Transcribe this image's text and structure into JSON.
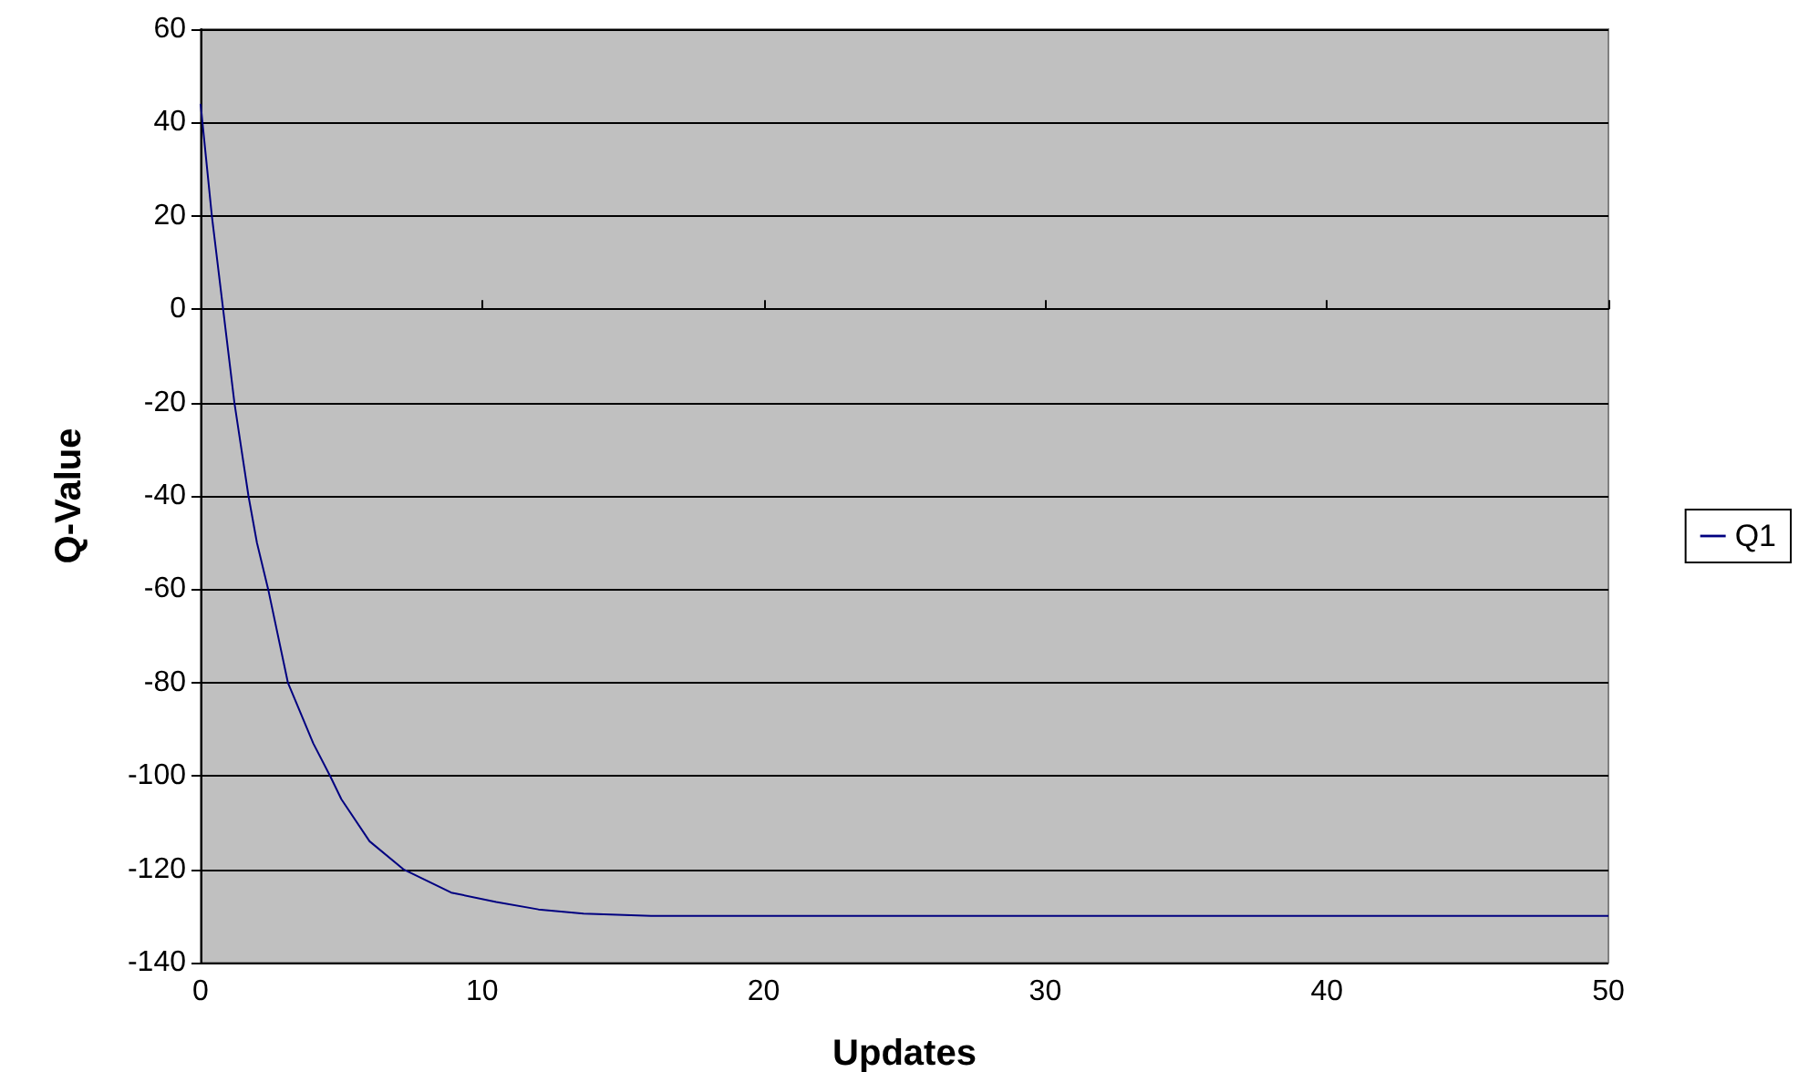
{
  "chart_data": {
    "type": "line",
    "xlabel": "Updates",
    "ylabel": "Q-Value",
    "x": [
      0,
      0.4,
      0.8,
      1.2,
      1.7,
      2.0,
      2.4,
      3.1,
      4.0,
      4.6,
      5.0,
      6.0,
      7.2,
      8.9,
      10.5,
      12,
      13.6,
      16,
      20,
      25,
      30,
      40,
      50
    ],
    "series": [
      {
        "name": "Q1",
        "color": "#000080",
        "values": [
          44,
          20,
          0,
          -20,
          -40,
          -50,
          -60,
          -80,
          -93,
          -100,
          -105,
          -114,
          -120,
          -125,
          -127,
          -128.6,
          -129.5,
          -130,
          -130,
          -130,
          -130,
          -130,
          -130
        ]
      }
    ],
    "xlim": [
      0,
      50
    ],
    "xticks": [
      0,
      10,
      20,
      30,
      40,
      50
    ],
    "ylim": [
      -140,
      60
    ],
    "yticks": [
      -140,
      -120,
      -100,
      -80,
      -60,
      -40,
      -20,
      0,
      20,
      40,
      60
    ],
    "grid": "y",
    "legend": "right",
    "marker": "none",
    "line_style": "solid"
  }
}
